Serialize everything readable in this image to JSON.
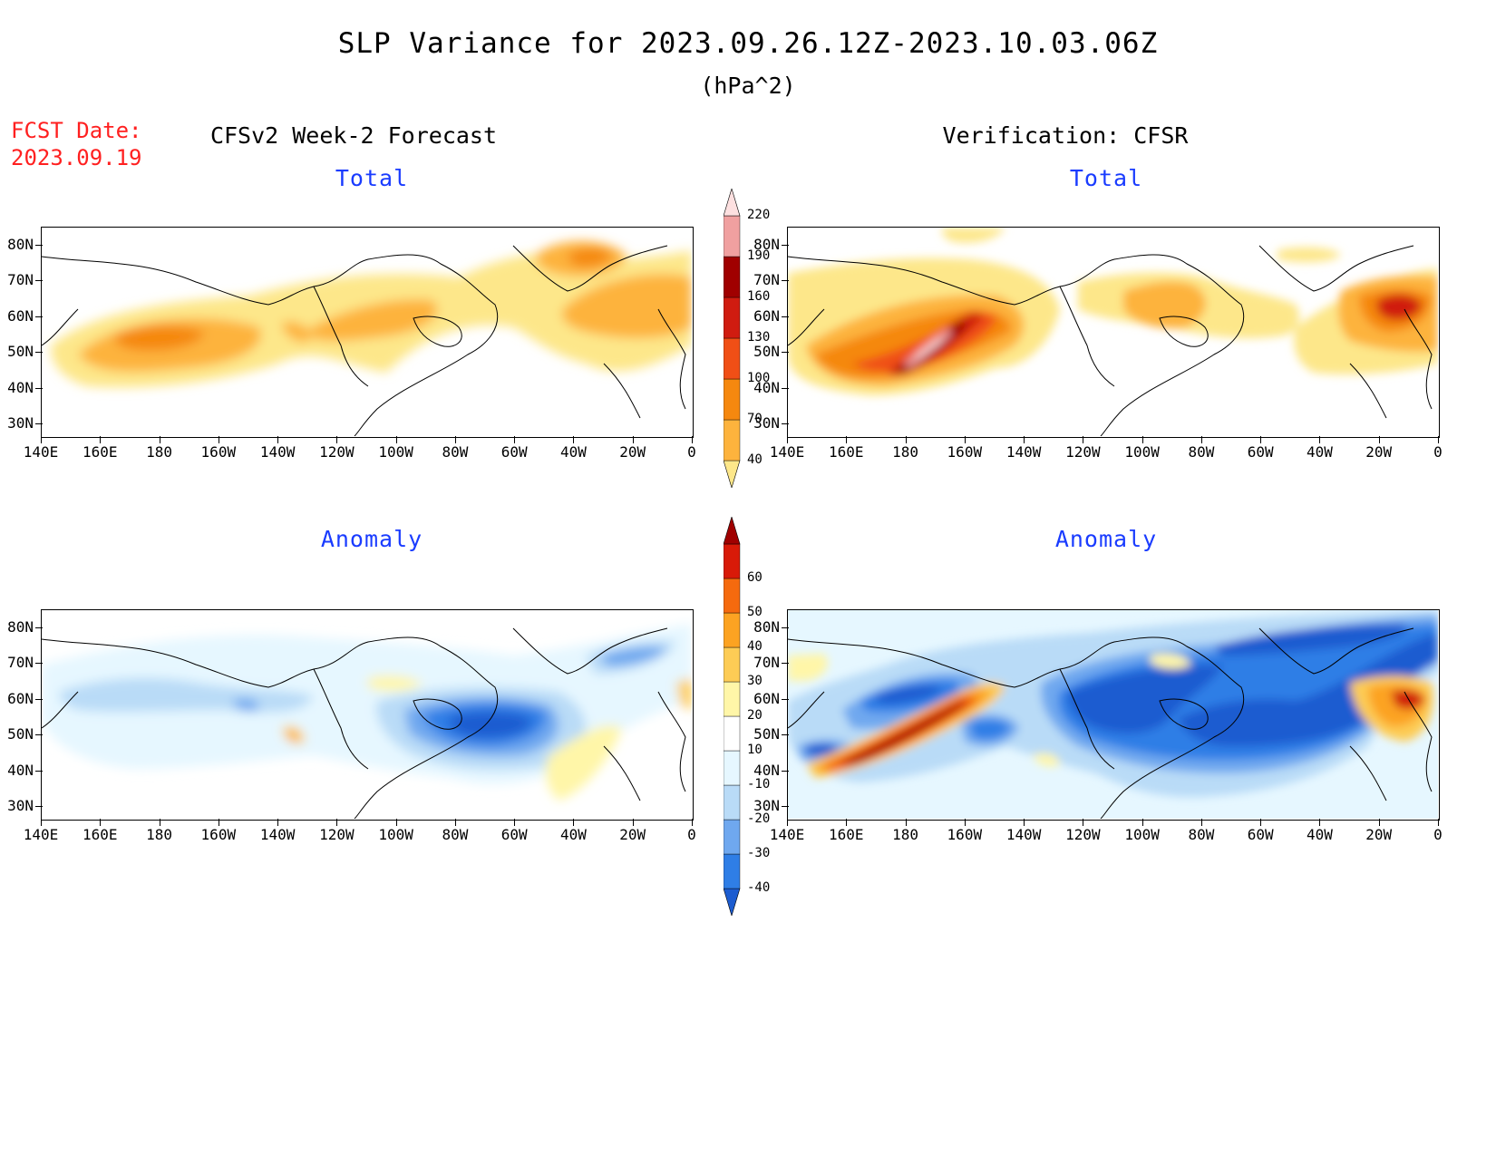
{
  "header": {
    "title": "SLP Variance for 2023.09.26.12Z-2023.10.03.06Z",
    "units": "(hPa^2)",
    "fcst_label": "FCST Date:",
    "fcst_date": "2023.09.19"
  },
  "columns": {
    "left": "CFSv2 Week-2 Forecast",
    "right": "Verification: CFSR"
  },
  "panels": {
    "fc_total": "Total",
    "ver_total": "Total",
    "fc_anom": "Anomaly",
    "ver_anom": "Anomaly"
  },
  "axes": {
    "lat_labels": [
      "80N",
      "70N",
      "60N",
      "50N",
      "40N",
      "30N"
    ],
    "lon_labels": [
      "140E",
      "160E",
      "180",
      "160W",
      "140W",
      "120W",
      "100W",
      "80W",
      "60W",
      "40W",
      "20W",
      "0"
    ]
  },
  "colorbars": {
    "total": {
      "labels": [
        "40",
        "70",
        "100",
        "130",
        "160",
        "190",
        "220"
      ],
      "colors": [
        "#fde78a",
        "#fdb33d",
        "#f5880f",
        "#f04f16",
        "#d01c10",
        "#a00000",
        "#f0a0a0",
        "#fde0e0"
      ]
    },
    "anomaly": {
      "labels": [
        "-40",
        "-30",
        "-20",
        "-10",
        "10",
        "20",
        "30",
        "40",
        "50",
        "60"
      ],
      "colors": [
        "#1c5cd0",
        "#2f7ee6",
        "#6fa8ef",
        "#b9dbf7",
        "#e6f7ff",
        "#ffffff",
        "#fff6a8",
        "#fdcc55",
        "#fca322",
        "#f56a0e",
        "#d81a08",
        "#a00000"
      ]
    }
  }
}
